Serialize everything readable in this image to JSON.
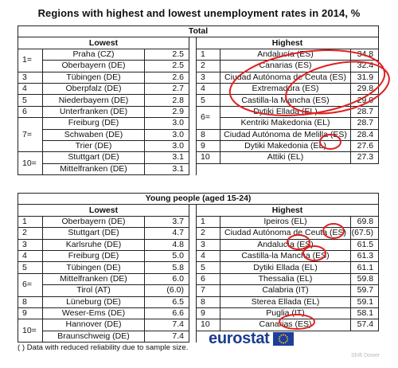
{
  "title": "Regions with highest and lowest unemployment rates in 2014, %",
  "total": {
    "header": "Total",
    "lowest_header": "Lowest",
    "highest_header": "Highest",
    "lowest": [
      {
        "rank": "1=",
        "name": "Praha (CZ)",
        "value": "2.5"
      },
      {
        "rank": "",
        "name": "Oberbayern (DE)",
        "value": "2.5"
      },
      {
        "rank": "3",
        "name": "Tübingen (DE)",
        "value": "2.6"
      },
      {
        "rank": "4",
        "name": "Oberpfalz (DE)",
        "value": "2.7"
      },
      {
        "rank": "5",
        "name": "Niederbayern (DE)",
        "value": "2.8"
      },
      {
        "rank": "6",
        "name": "Unterfranken (DE)",
        "value": "2.9"
      },
      {
        "rank": "7=",
        "name": "Freiburg (DE)",
        "value": "3.0"
      },
      {
        "rank": "",
        "name": "Schwaben (DE)",
        "value": "3.0"
      },
      {
        "rank": "",
        "name": "Trier (DE)",
        "value": "3.0"
      },
      {
        "rank": "10=",
        "name": "Stuttgart (DE)",
        "value": "3.1"
      },
      {
        "rank": "",
        "name": "Mittelfranken (DE)",
        "value": "3.1"
      }
    ],
    "highest": [
      {
        "rank": "1",
        "name": "Andalucía (ES)",
        "value": "34.8"
      },
      {
        "rank": "2",
        "name": "Canarias (ES)",
        "value": "32.4"
      },
      {
        "rank": "3",
        "name": "Ciudad Autónoma de Ceuta (ES)",
        "value": "31.9"
      },
      {
        "rank": "4",
        "name": "Extremadura (ES)",
        "value": "29.8"
      },
      {
        "rank": "5",
        "name": "Castilla-la Mancha (ES)",
        "value": "29.0"
      },
      {
        "rank": "6=",
        "name": "Dytiki Ellada (EL)",
        "value": "28.7"
      },
      {
        "rank": "",
        "name": "Kentriki Makedonia (EL)",
        "value": "28.7"
      },
      {
        "rank": "8",
        "name": "Ciudad Autónoma de Melilla (ES)",
        "value": "28.4"
      },
      {
        "rank": "9",
        "name": "Dytiki Makedonia (EL)",
        "value": "27.6"
      },
      {
        "rank": "10",
        "name": "Attiki (EL)",
        "value": "27.3"
      }
    ]
  },
  "young": {
    "header": "Young people (aged 15-24)",
    "lowest_header": "Lowest",
    "highest_header": "Highest",
    "lowest": [
      {
        "rank": "1",
        "name": "Oberbayern (DE)",
        "value": "3.7"
      },
      {
        "rank": "2",
        "name": "Stuttgart (DE)",
        "value": "4.7"
      },
      {
        "rank": "3",
        "name": "Karlsruhe (DE)",
        "value": "4.8"
      },
      {
        "rank": "4",
        "name": "Freiburg (DE)",
        "value": "5.0"
      },
      {
        "rank": "5",
        "name": "Tübingen (DE)",
        "value": "5.8"
      },
      {
        "rank": "6=",
        "name": "Mittelfranken (DE)",
        "value": "6.0"
      },
      {
        "rank": "",
        "name": "Tirol (AT)",
        "value": "(6.0)"
      },
      {
        "rank": "8",
        "name": "Lüneburg (DE)",
        "value": "6.5"
      },
      {
        "rank": "9",
        "name": "Weser-Ems (DE)",
        "value": "6.6"
      },
      {
        "rank": "10=",
        "name": "Hannover (DE)",
        "value": "7.4"
      },
      {
        "rank": "",
        "name": "Braunschweig (DE)",
        "value": "7.4"
      }
    ],
    "highest": [
      {
        "rank": "1",
        "name": "Ipeiros (EL)",
        "value": "69.8"
      },
      {
        "rank": "2",
        "name": "Ciudad Autónoma de Ceuta (ES)",
        "value": "(67.5)"
      },
      {
        "rank": "3",
        "name": "Andalucía (ES)",
        "value": "61.5"
      },
      {
        "rank": "4",
        "name": "Castilla-la Mancha (ES)",
        "value": "61.3"
      },
      {
        "rank": "5",
        "name": "Dytiki Ellada (EL)",
        "value": "61.1"
      },
      {
        "rank": "6",
        "name": "Thessalia (EL)",
        "value": "59.8"
      },
      {
        "rank": "7",
        "name": "Calabria (IT)",
        "value": "59.7"
      },
      {
        "rank": "8",
        "name": "Sterea Ellada (EL)",
        "value": "59.1"
      },
      {
        "rank": "9",
        "name": "Puglia (IT)",
        "value": "58.1"
      },
      {
        "rank": "10",
        "name": "Canarias (ES)",
        "value": "57.4"
      }
    ]
  },
  "footnote": "( ) Data with reduced reliability due to sample size.",
  "logo_text": "eurostat",
  "watermark": "Shift Dower",
  "colors": {
    "annotation_red": "#e02020",
    "eurostat_blue": "#1a3c8f",
    "eu_flag_blue": "#1f3e9c",
    "eu_star_yellow": "#ffd400"
  }
}
